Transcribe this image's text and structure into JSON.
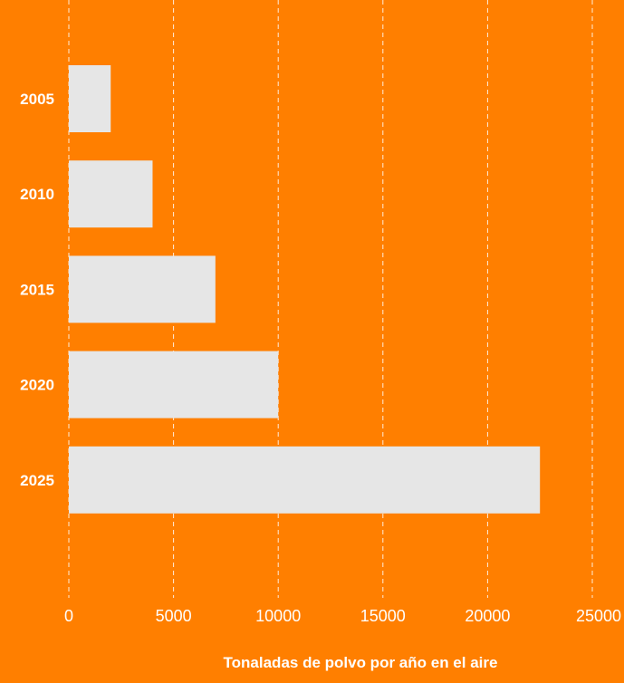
{
  "chart_data": {
    "type": "bar",
    "orientation": "horizontal",
    "categories": [
      "2005",
      "2010",
      "2015",
      "2020",
      "2025"
    ],
    "values": [
      2000,
      4000,
      7000,
      10000,
      22500
    ],
    "xlim": [
      0,
      25000
    ],
    "xticks": [
      0,
      5000,
      10000,
      15000,
      20000,
      25000
    ],
    "xlabel": "Tonaladas de polvo por año en el aire",
    "ylabel": "",
    "title": "",
    "grid": "vertical-dashed",
    "legend": "none"
  },
  "colors": {
    "background": "#FF7F00",
    "bar": "#E6E6E6",
    "text": "#FFFFFF",
    "grid": "#FFFFFF"
  }
}
